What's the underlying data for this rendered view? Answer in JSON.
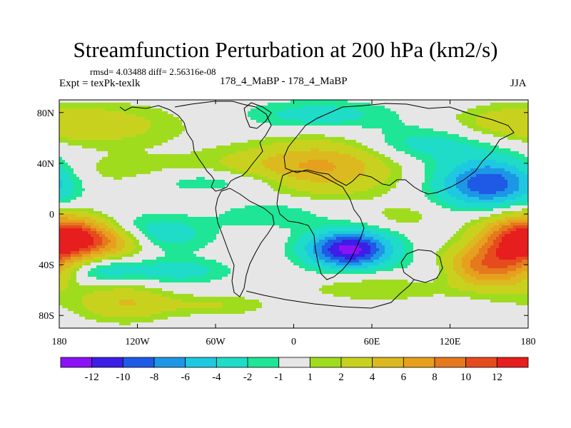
{
  "chart_data": {
    "type": "heatmap",
    "title": "Streamfunction Perturbation at 200 hPa (km2/s)",
    "stats": "rmsd= 4.03488 diff= 2.56316e-08",
    "left_label": "Expt = texPk-texlk",
    "center_label": "178_4_MaBP - 178_4_MaBP",
    "right_label": "JJA",
    "x_axis": {
      "range": [
        -180,
        180
      ],
      "ticks": [
        -180,
        -120,
        -60,
        0,
        60,
        120,
        180
      ],
      "tick_labels": [
        "180",
        "120W",
        "60W",
        "0",
        "60E",
        "120E",
        "180"
      ]
    },
    "y_axis": {
      "range": [
        -90,
        90
      ],
      "ticks": [
        80,
        40,
        0,
        -40,
        -80
      ],
      "tick_labels": [
        "80N",
        "40N",
        "0",
        "40S",
        "80S"
      ]
    },
    "colorbar": {
      "colors": [
        "#8b12f5",
        "#3c1ee6",
        "#1e5ae6",
        "#1e96e6",
        "#1ec8e1",
        "#1edcc8",
        "#1ee696",
        "#e6e6e6",
        "#a0dc1e",
        "#c8d21e",
        "#dcb91e",
        "#e6a01e",
        "#e6781e",
        "#e64b1e",
        "#e61e1e"
      ],
      "labels": [
        "-12",
        "-10",
        "-8",
        "-6",
        "-4",
        "-2",
        "-1",
        "1",
        "2",
        "4",
        "6",
        "8",
        "10",
        "12"
      ]
    },
    "field_blobs": [
      {
        "lon": 43,
        "lat": -28,
        "sx": 22,
        "sy": 10,
        "v": -13
      },
      {
        "lon": 150,
        "lat": 24,
        "sx": 26,
        "sy": 13,
        "v": -10
      },
      {
        "lon": -110,
        "lat": -16,
        "sx": 30,
        "sy": 10,
        "v": -4
      },
      {
        "lon": -60,
        "lat": 26,
        "sx": 45,
        "sy": 7,
        "v": -3
      },
      {
        "lon": 20,
        "lat": 78,
        "sx": 40,
        "sy": 8,
        "v": -3
      },
      {
        "lon": 100,
        "lat": 55,
        "sx": 40,
        "sy": 10,
        "v": -3
      },
      {
        "lon": -150,
        "lat": -44,
        "sx": 20,
        "sy": 7,
        "v": -3
      },
      {
        "lon": -90,
        "lat": -45,
        "sx": 28,
        "sy": 7,
        "v": -3
      },
      {
        "lon": -15,
        "lat": 0,
        "sx": 30,
        "sy": 8,
        "v": -2
      },
      {
        "lon": 115,
        "lat": -45,
        "sx": 20,
        "sy": 7,
        "v": -2
      },
      {
        "lon": -170,
        "lat": -18,
        "sx": 20,
        "sy": 11,
        "v": 11
      },
      {
        "lon": -140,
        "lat": -22,
        "sx": 22,
        "sy": 9,
        "v": 6
      },
      {
        "lon": 165,
        "lat": -30,
        "sx": 20,
        "sy": 18,
        "v": 10
      },
      {
        "lon": 135,
        "lat": -42,
        "sx": 18,
        "sy": 10,
        "v": 6
      },
      {
        "lon": 30,
        "lat": 38,
        "sx": 35,
        "sy": 16,
        "v": 5
      },
      {
        "lon": -20,
        "lat": 36,
        "sx": 40,
        "sy": 12,
        "v": 3
      },
      {
        "lon": -150,
        "lat": 70,
        "sx": 45,
        "sy": 12,
        "v": 3
      },
      {
        "lon": 160,
        "lat": 72,
        "sx": 30,
        "sy": 9,
        "v": 2
      },
      {
        "lon": -130,
        "lat": 32,
        "sx": 40,
        "sy": 10,
        "v": 2
      },
      {
        "lon": 65,
        "lat": -58,
        "sx": 40,
        "sy": 8,
        "v": 2
      },
      {
        "lon": -130,
        "lat": -70,
        "sx": 25,
        "sy": 10,
        "v": 4
      },
      {
        "lon": -60,
        "lat": -72,
        "sx": 30,
        "sy": 6,
        "v": 2
      },
      {
        "lon": 85,
        "lat": -2,
        "sx": 20,
        "sy": 7,
        "v": 1.5
      }
    ]
  }
}
